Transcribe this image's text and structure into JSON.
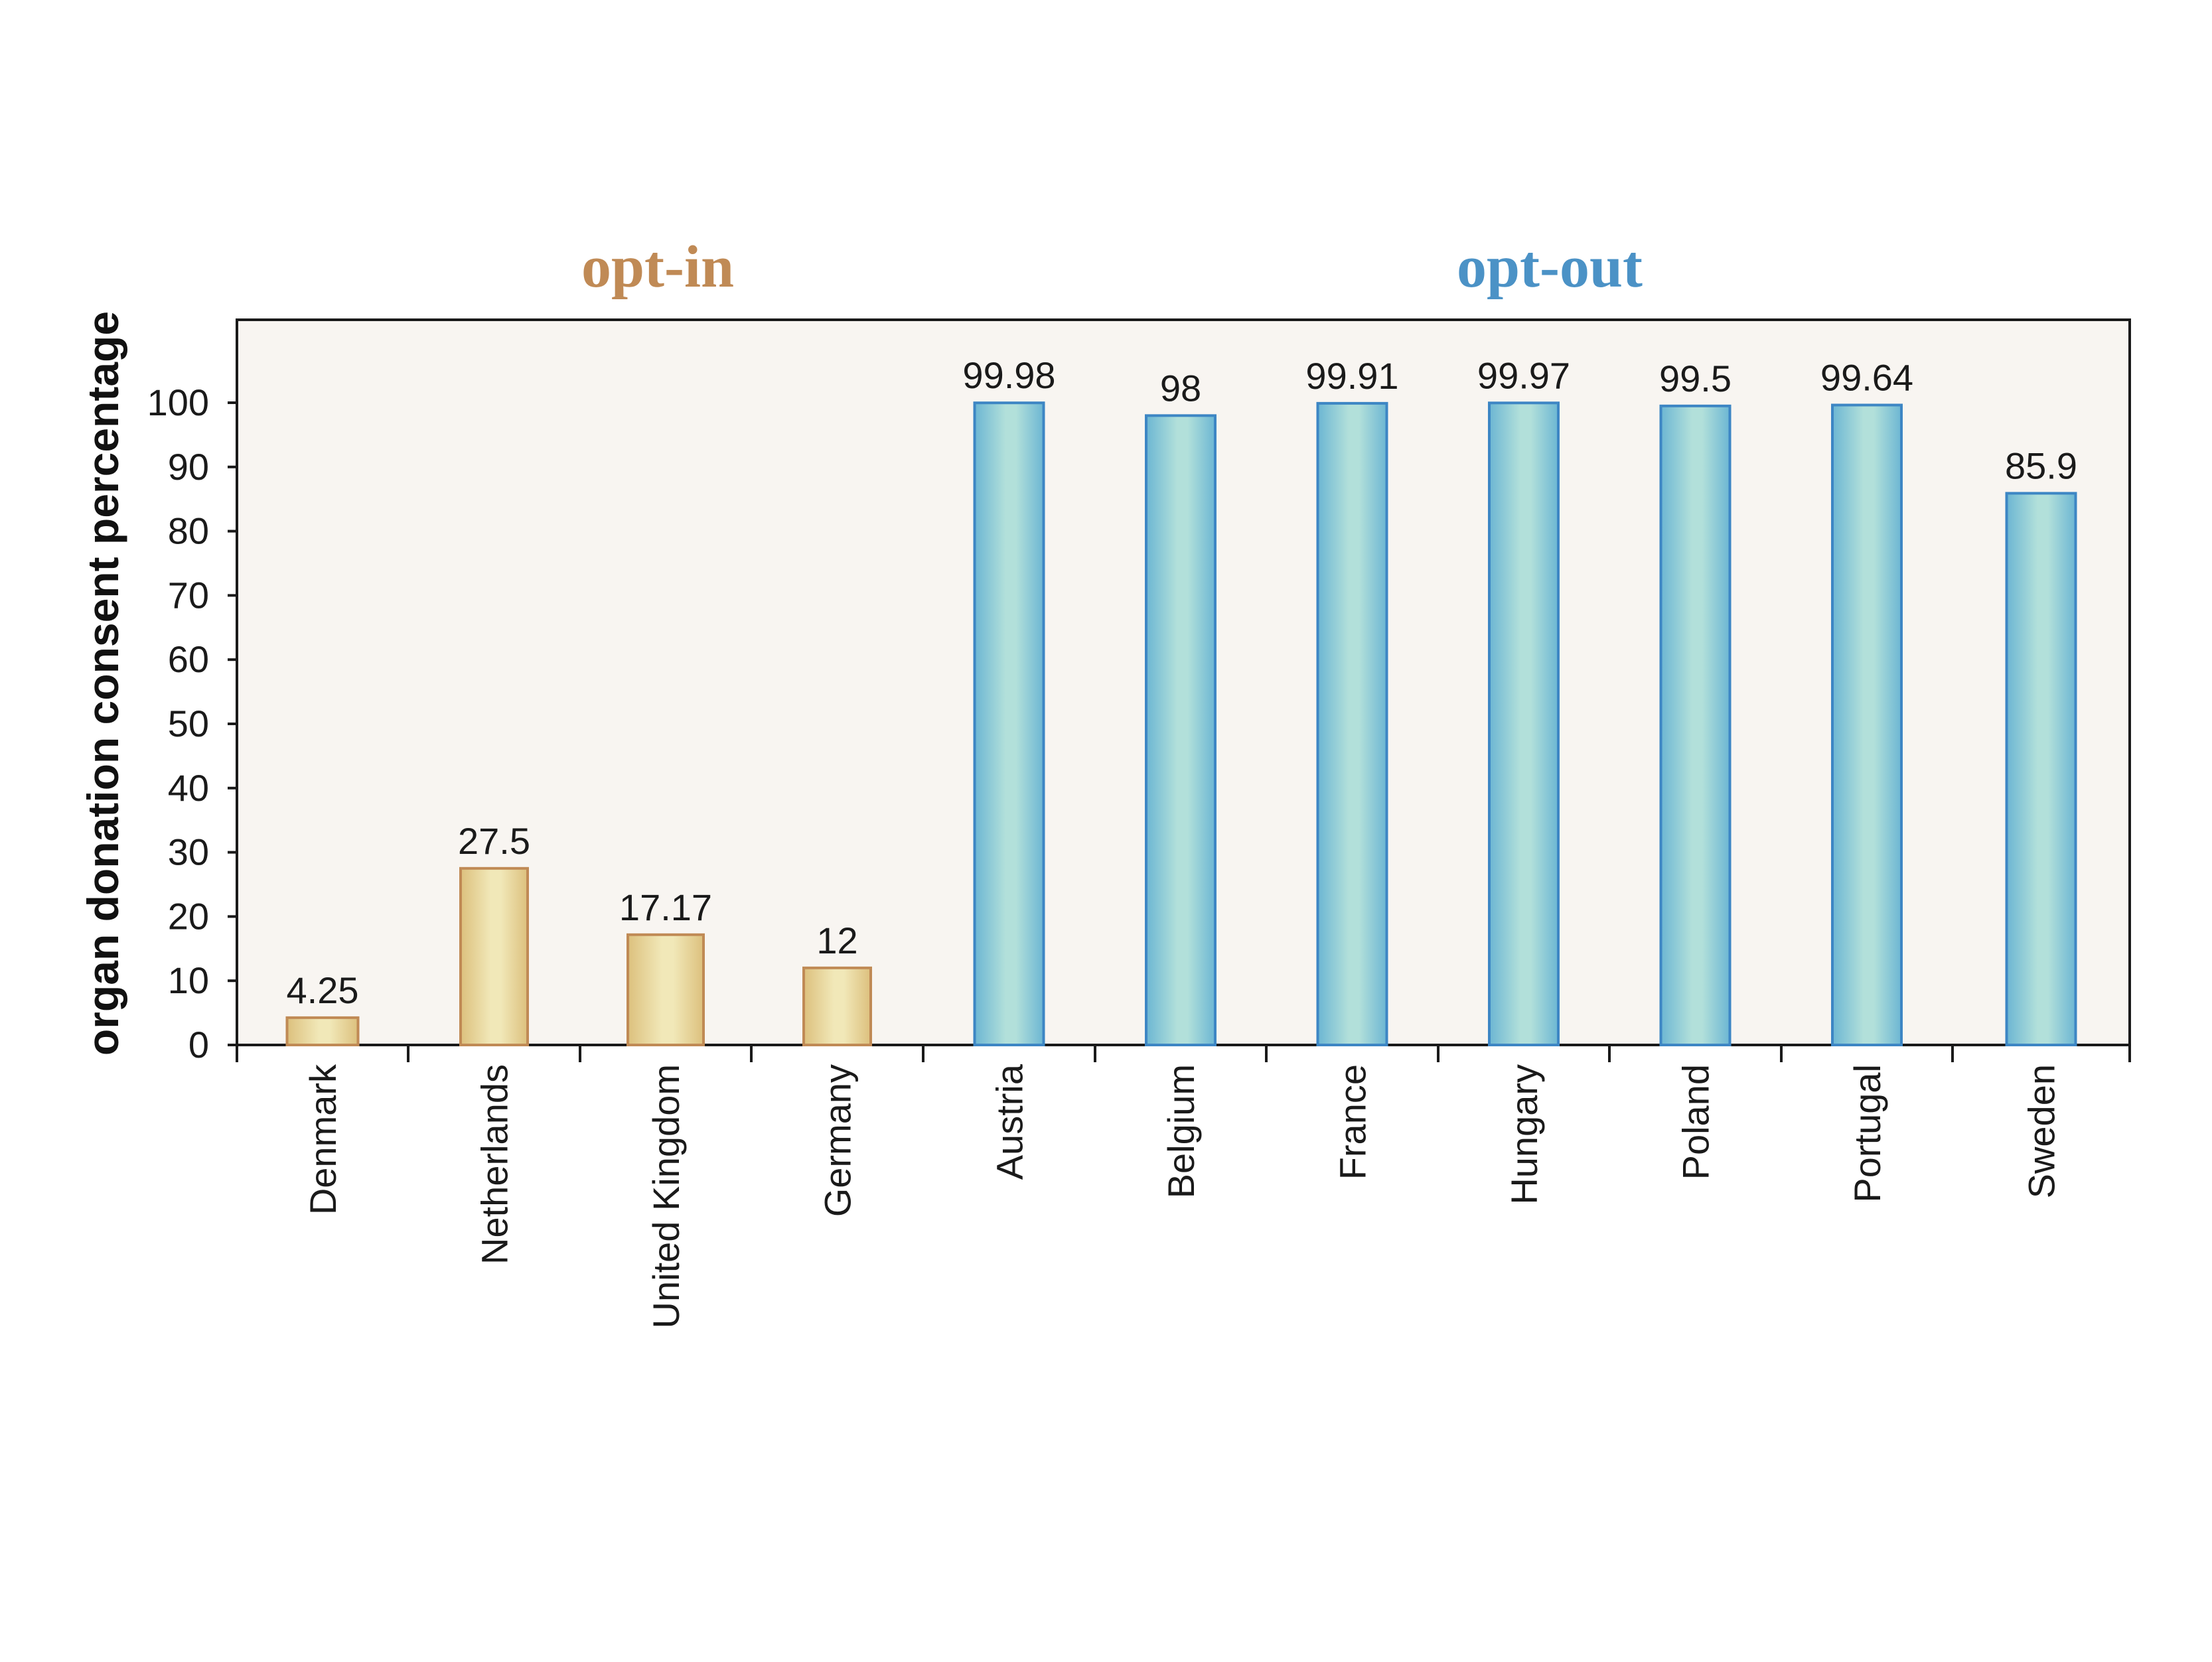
{
  "chart_data": {
    "type": "bar",
    "ylabel": "organ donation consent percentage",
    "ylim": [
      0,
      112
    ],
    "yticks": [
      0,
      10,
      20,
      30,
      40,
      50,
      60,
      70,
      80,
      90,
      100
    ],
    "grid": false,
    "groups": [
      {
        "name": "opt-in",
        "color": "#c08a55",
        "fill_light": "#f1e8b8",
        "fill_dark": "#dcc07d",
        "stroke": "#c08a55",
        "categories": [
          "Denmark",
          "Netherlands",
          "United Kingdom",
          "Germany"
        ],
        "values": [
          4.25,
          27.5,
          17.17,
          12
        ],
        "labels": [
          "4.25",
          "27.5",
          "17.17",
          "12"
        ]
      },
      {
        "name": "opt-out",
        "color": "#4b92c6",
        "fill_light": "#b2e0da",
        "fill_dark": "#6cb6d3",
        "stroke": "#3d86c4",
        "categories": [
          "Austria",
          "Belgium",
          "France",
          "Hungary",
          "Poland",
          "Portugal",
          "Sweden"
        ],
        "values": [
          99.98,
          98,
          99.91,
          99.97,
          99.5,
          99.64,
          85.9
        ],
        "labels": [
          "99.98",
          "98",
          "99.91",
          "99.97",
          "99.5",
          "99.64",
          "85.9"
        ]
      }
    ],
    "plot_background": "#f8f5f1"
  }
}
